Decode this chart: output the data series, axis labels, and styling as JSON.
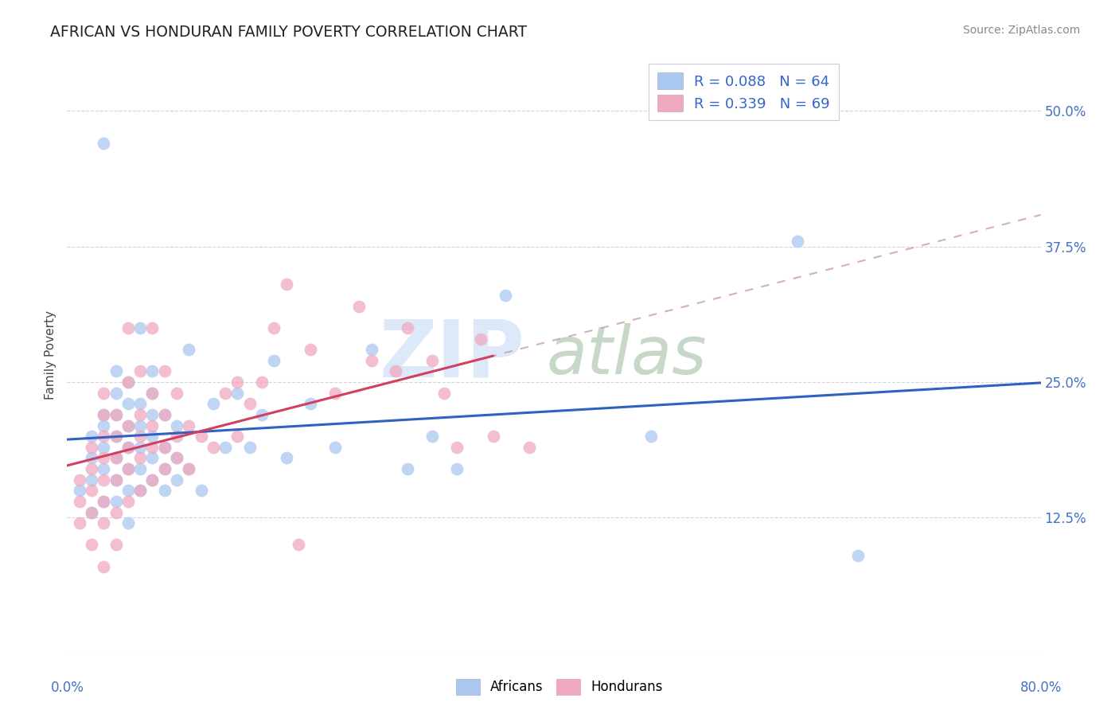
{
  "title": "AFRICAN VS HONDURAN FAMILY POVERTY CORRELATION CHART",
  "source": "Source: ZipAtlas.com",
  "ylabel": "Family Poverty",
  "yticks": [
    0.0,
    0.125,
    0.25,
    0.375,
    0.5
  ],
  "ytick_labels": [
    "",
    "12.5%",
    "25.0%",
    "37.5%",
    "50.0%"
  ],
  "xlim": [
    0.0,
    0.8
  ],
  "ylim": [
    0.0,
    0.55
  ],
  "legend_r_african": "R = 0.088",
  "legend_n_african": "N = 64",
  "legend_r_honduran": "R = 0.339",
  "legend_n_honduran": "N = 69",
  "african_color": "#aac8f0",
  "honduran_color": "#f0a8c0",
  "african_line_color": "#3060c0",
  "honduran_line_color": "#d04060",
  "dashed_line_color": "#d0a0b0",
  "watermark_zip_color": "#dde8f8",
  "watermark_atlas_color": "#c8d8c8",
  "africans_x": [
    0.01,
    0.02,
    0.02,
    0.02,
    0.02,
    0.03,
    0.03,
    0.03,
    0.03,
    0.03,
    0.03,
    0.04,
    0.04,
    0.04,
    0.04,
    0.04,
    0.04,
    0.04,
    0.05,
    0.05,
    0.05,
    0.05,
    0.05,
    0.05,
    0.05,
    0.06,
    0.06,
    0.06,
    0.06,
    0.06,
    0.06,
    0.07,
    0.07,
    0.07,
    0.07,
    0.07,
    0.07,
    0.08,
    0.08,
    0.08,
    0.08,
    0.09,
    0.09,
    0.09,
    0.1,
    0.1,
    0.11,
    0.12,
    0.13,
    0.14,
    0.15,
    0.16,
    0.17,
    0.18,
    0.2,
    0.22,
    0.25,
    0.28,
    0.3,
    0.32,
    0.36,
    0.48,
    0.6,
    0.65
  ],
  "africans_y": [
    0.15,
    0.13,
    0.16,
    0.18,
    0.2,
    0.14,
    0.17,
    0.19,
    0.21,
    0.22,
    0.47,
    0.14,
    0.16,
    0.18,
    0.2,
    0.22,
    0.24,
    0.26,
    0.12,
    0.15,
    0.17,
    0.19,
    0.21,
    0.23,
    0.25,
    0.15,
    0.17,
    0.19,
    0.21,
    0.23,
    0.3,
    0.16,
    0.18,
    0.2,
    0.22,
    0.24,
    0.26,
    0.15,
    0.17,
    0.19,
    0.22,
    0.16,
    0.18,
    0.21,
    0.17,
    0.28,
    0.15,
    0.23,
    0.19,
    0.24,
    0.19,
    0.22,
    0.27,
    0.18,
    0.23,
    0.19,
    0.28,
    0.17,
    0.2,
    0.17,
    0.33,
    0.2,
    0.38,
    0.09
  ],
  "hondurans_x": [
    0.01,
    0.01,
    0.01,
    0.02,
    0.02,
    0.02,
    0.02,
    0.02,
    0.03,
    0.03,
    0.03,
    0.03,
    0.03,
    0.03,
    0.03,
    0.03,
    0.04,
    0.04,
    0.04,
    0.04,
    0.04,
    0.04,
    0.05,
    0.05,
    0.05,
    0.05,
    0.05,
    0.05,
    0.06,
    0.06,
    0.06,
    0.06,
    0.06,
    0.07,
    0.07,
    0.07,
    0.07,
    0.07,
    0.08,
    0.08,
    0.08,
    0.08,
    0.09,
    0.09,
    0.09,
    0.1,
    0.1,
    0.11,
    0.12,
    0.13,
    0.14,
    0.14,
    0.15,
    0.16,
    0.17,
    0.18,
    0.19,
    0.2,
    0.22,
    0.24,
    0.25,
    0.27,
    0.28,
    0.3,
    0.31,
    0.32,
    0.34,
    0.35,
    0.38
  ],
  "hondurans_y": [
    0.12,
    0.14,
    0.16,
    0.1,
    0.13,
    0.15,
    0.17,
    0.19,
    0.12,
    0.14,
    0.16,
    0.18,
    0.2,
    0.22,
    0.24,
    0.08,
    0.13,
    0.16,
    0.18,
    0.2,
    0.22,
    0.1,
    0.14,
    0.17,
    0.19,
    0.21,
    0.25,
    0.3,
    0.15,
    0.18,
    0.2,
    0.22,
    0.26,
    0.16,
    0.19,
    0.21,
    0.24,
    0.3,
    0.17,
    0.19,
    0.22,
    0.26,
    0.18,
    0.2,
    0.24,
    0.17,
    0.21,
    0.2,
    0.19,
    0.24,
    0.2,
    0.25,
    0.23,
    0.25,
    0.3,
    0.34,
    0.1,
    0.28,
    0.24,
    0.32,
    0.27,
    0.26,
    0.3,
    0.27,
    0.24,
    0.19,
    0.29,
    0.2,
    0.19
  ],
  "african_slope": 0.088,
  "honduran_slope": 0.339
}
